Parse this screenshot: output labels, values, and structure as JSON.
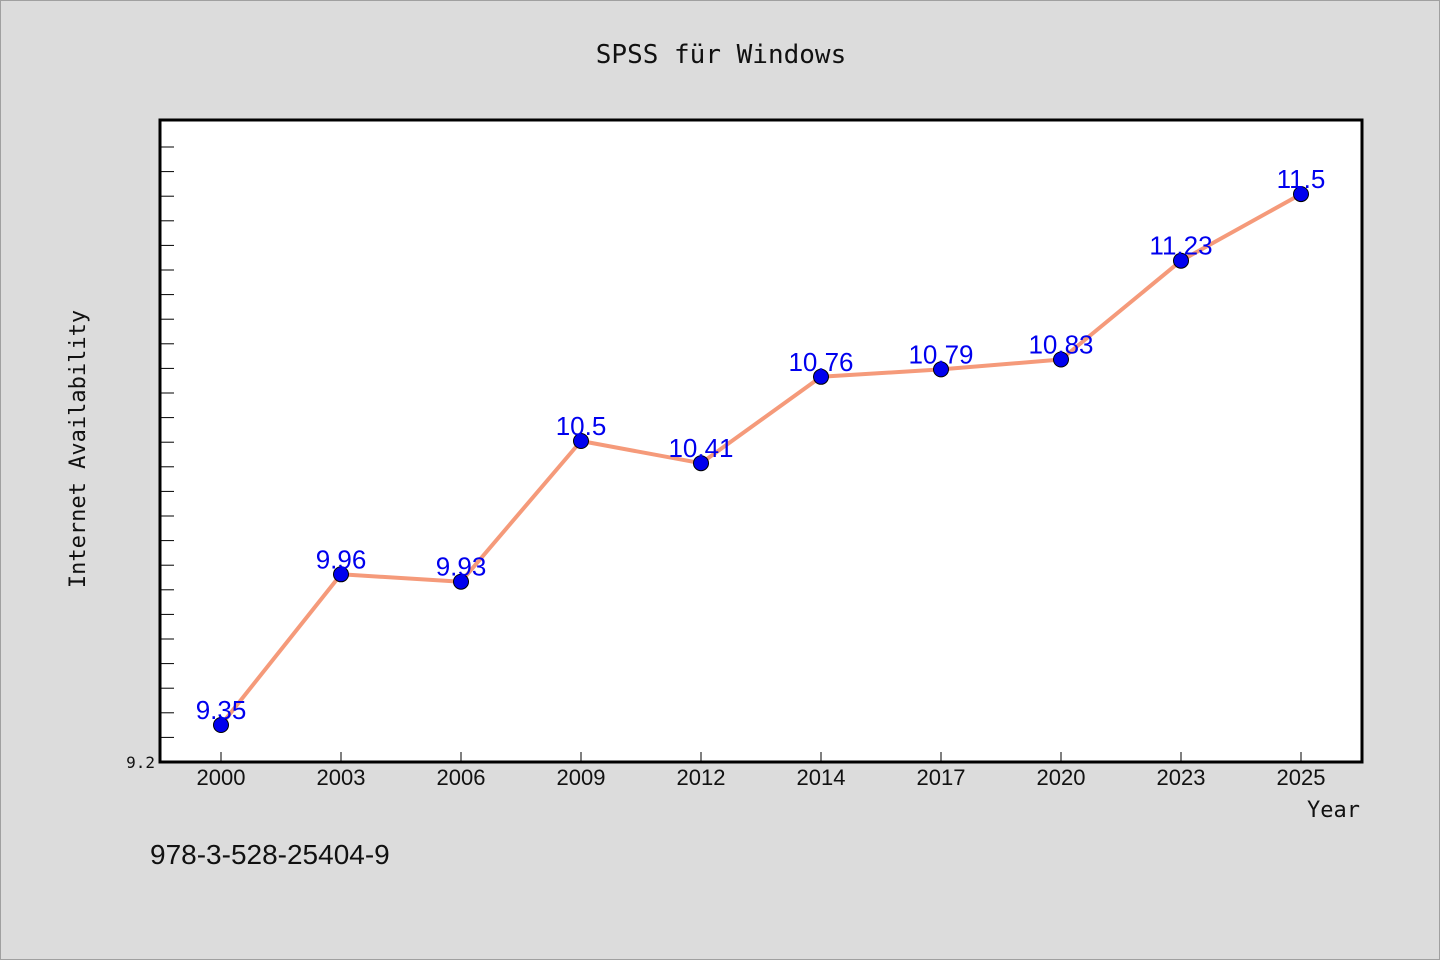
{
  "window": {
    "title": "SPSS für Windows"
  },
  "footer": {
    "isbn": "978-3-528-25404-9"
  },
  "colors": {
    "background": "#dcdcdc",
    "plot_background": "#ffffff",
    "line": "#f59a7a",
    "marker": "#0000ee",
    "label": "#0000ee",
    "axis": "#000000"
  },
  "chart_data": {
    "type": "line",
    "title": "SPSS für Windows",
    "xlabel": "Year",
    "ylabel": "Internet Availability",
    "categories": [
      "2000",
      "2003",
      "2006",
      "2009",
      "2012",
      "2014",
      "2017",
      "2020",
      "2023",
      "2025"
    ],
    "series": [
      {
        "values": [
          9.35,
          9.96,
          9.93,
          10.5,
          10.41,
          10.76,
          10.79,
          10.83,
          11.23,
          11.5
        ]
      }
    ],
    "data_labels": [
      "9.35",
      "9.96",
      "9.93",
      "10.5",
      "10.41",
      "10.76",
      "10.79",
      "10.83",
      "11.23",
      "11.5"
    ],
    "y_tick_labels": [
      "9.2"
    ],
    "ylim": [
      9.2,
      11.8
    ],
    "grid": false,
    "legend": "none",
    "markers": "circle"
  }
}
